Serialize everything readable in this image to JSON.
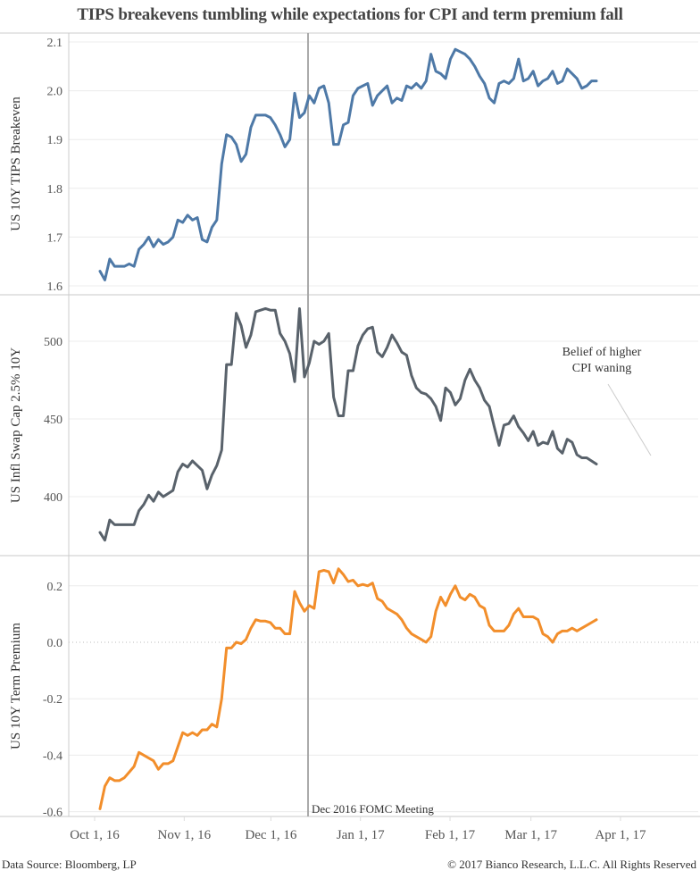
{
  "title": "TIPS breakevens tumbling while expectations for CPI and term premium fall",
  "footer": {
    "source": "Data Source: Bloomberg, LP",
    "copyright": "© 2017 Bianco Research, L.L.C. All Rights Reserved"
  },
  "chart_data": [
    {
      "type": "line",
      "title": "TIPS breakevens tumbling while expectations for CPI and term premium fall",
      "ylabel": "US 10Y TIPS Breakeven",
      "ylim": [
        1.59,
        2.11
      ],
      "yticks": [
        "1.6",
        "1.7",
        "1.8",
        "1.9",
        "2.0",
        "2.1"
      ],
      "grid": true,
      "color": "#4e79a7",
      "x_days_from_2016_10_01": [
        1,
        3,
        5,
        7,
        9,
        11,
        13,
        15,
        17,
        19,
        21,
        23,
        25,
        27,
        29,
        31,
        33,
        35,
        37,
        39,
        41,
        43,
        45,
        47,
        49,
        51,
        53,
        55,
        57,
        59,
        61,
        63,
        65,
        67,
        69,
        71,
        73,
        75,
        77,
        79,
        81,
        83,
        85,
        87,
        89,
        91,
        93,
        95,
        97,
        99,
        101,
        103,
        105,
        107,
        109,
        111,
        113,
        115,
        117,
        119,
        121,
        123,
        125,
        127,
        129,
        131,
        133,
        135,
        137,
        139,
        141,
        143,
        145,
        147,
        149,
        151,
        153,
        155,
        157,
        159,
        161,
        163,
        165,
        167,
        169,
        171,
        173,
        175,
        177,
        179,
        181,
        183,
        185,
        187,
        189,
        191,
        193,
        195,
        197,
        199,
        201,
        203,
        205
      ],
      "values": [
        1.63,
        1.612,
        1.655,
        1.64,
        1.64,
        1.64,
        1.645,
        1.64,
        1.675,
        1.685,
        1.7,
        1.68,
        1.695,
        1.685,
        1.69,
        1.7,
        1.735,
        1.73,
        1.745,
        1.735,
        1.74,
        1.695,
        1.69,
        1.72,
        1.735,
        1.85,
        1.91,
        1.905,
        1.89,
        1.855,
        1.87,
        1.925,
        1.95,
        1.95,
        1.95,
        1.945,
        1.93,
        1.91,
        1.885,
        1.9,
        1.995,
        1.945,
        1.955,
        1.99,
        1.975,
        2.005,
        2.01,
        1.975,
        1.89,
        1.89,
        1.93,
        1.935,
        1.99,
        2.005,
        2.01,
        2.015,
        1.97,
        1.99,
        2.0,
        2.01,
        1.975,
        1.985,
        1.98,
        2.01,
        2.005,
        2.015,
        2.005,
        2.02,
        2.075,
        2.04,
        2.035,
        2.025,
        2.065,
        2.085,
        2.08,
        2.075,
        2.065,
        2.05,
        2.03,
        2.015,
        1.985,
        1.975,
        2.015,
        2.02,
        2.015,
        2.025,
        2.065,
        2.02,
        2.025,
        2.04,
        2.01,
        2.02,
        2.025,
        2.04,
        2.015,
        2.02,
        2.045,
        2.035,
        2.025,
        2.005,
        2.01,
        2.02,
        2.02
      ],
      "x_range": [
        "Sep 22, 16",
        "Apr 26, 17"
      ]
    },
    {
      "type": "line",
      "ylabel": "US Infl Swap Cap 2.5% 10Y",
      "ylim": [
        368,
        522
      ],
      "yticks": [
        "400",
        "450",
        "500"
      ],
      "grid": true,
      "color": "#59626b",
      "annotation": "Belief of higher CPI waning",
      "values": [
        377,
        372,
        385,
        382,
        382,
        382,
        382,
        382,
        391,
        395,
        401,
        397,
        403,
        400,
        402,
        404,
        416,
        421,
        419,
        423,
        420,
        417,
        405,
        414,
        420,
        430,
        485,
        485,
        518,
        510,
        496,
        504,
        519,
        520,
        521,
        520,
        520,
        505,
        500,
        492,
        474,
        521,
        477,
        486,
        500,
        498,
        500,
        505,
        464,
        452,
        452,
        481,
        481,
        497,
        504,
        508,
        509,
        493,
        490,
        496,
        504,
        499,
        493,
        491,
        478,
        470,
        467,
        466,
        463,
        458,
        449,
        470,
        467,
        459,
        463,
        475,
        482,
        475,
        470,
        462,
        458,
        445,
        433,
        446,
        447,
        452,
        445,
        441,
        436,
        442,
        433,
        435,
        434,
        442,
        431,
        428,
        437,
        435,
        427,
        425,
        425,
        423,
        421
      ]
    },
    {
      "type": "line",
      "ylabel": "US 10Y Term Premium",
      "ylim": [
        -0.62,
        0.27
      ],
      "yticks": [
        "-0.6",
        "-0.4",
        "-0.2",
        "0.0",
        "0.2"
      ],
      "grid": true,
      "color": "#f28e2b",
      "zero_line": "dotted",
      "values": [
        -0.59,
        -0.51,
        -0.48,
        -0.49,
        -0.49,
        -0.48,
        -0.46,
        -0.44,
        -0.39,
        -0.4,
        -0.41,
        -0.42,
        -0.45,
        -0.43,
        -0.43,
        -0.42,
        -0.37,
        -0.32,
        -0.33,
        -0.32,
        -0.33,
        -0.31,
        -0.31,
        -0.29,
        -0.3,
        -0.2,
        -0.02,
        -0.02,
        0.0,
        -0.005,
        0.01,
        0.05,
        0.08,
        0.075,
        0.075,
        0.07,
        0.05,
        0.05,
        0.03,
        0.03,
        0.18,
        0.14,
        0.11,
        0.13,
        0.12,
        0.25,
        0.255,
        0.25,
        0.21,
        0.26,
        0.24,
        0.215,
        0.22,
        0.2,
        0.205,
        0.2,
        0.21,
        0.155,
        0.145,
        0.12,
        0.11,
        0.1,
        0.08,
        0.05,
        0.03,
        0.02,
        0.01,
        0.0,
        0.02,
        0.11,
        0.16,
        0.13,
        0.17,
        0.2,
        0.16,
        0.15,
        0.17,
        0.16,
        0.13,
        0.12,
        0.06,
        0.04,
        0.04,
        0.04,
        0.06,
        0.1,
        0.12,
        0.09,
        0.09,
        0.09,
        0.08,
        0.03,
        0.02,
        0.0,
        0.03,
        0.04,
        0.04,
        0.05,
        0.04,
        0.05,
        0.06,
        0.07,
        0.08
      ]
    }
  ],
  "x_axis": {
    "ticks": [
      "Oct 1, 16",
      "Nov 1, 16",
      "Dec 1, 16",
      "Jan 1, 17",
      "Feb 1, 17",
      "Mar 1, 17",
      "Apr 1, 17"
    ],
    "tick_days": [
      0,
      31,
      61,
      92,
      123,
      151,
      182
    ]
  },
  "reference_line": {
    "label": "Dec 2016 FOMC Meeting",
    "day": 75
  }
}
